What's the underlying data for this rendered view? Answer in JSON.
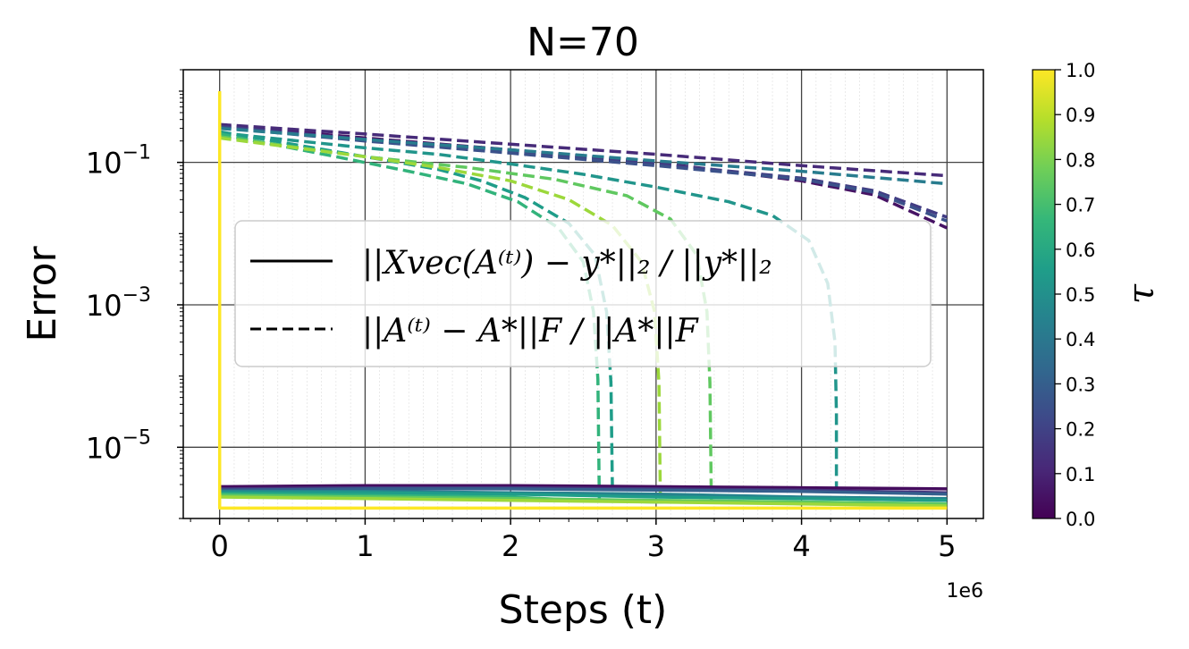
{
  "chart_data": {
    "type": "line",
    "title": "N=70",
    "xlabel": "Steps (t)",
    "ylabel": "Error",
    "x_offset_label": "1e6",
    "x_range": [
      -250000,
      5250000
    ],
    "y_scale": "log",
    "y_range": [
      1e-06,
      2
    ],
    "x_ticks": [
      {
        "value": 0,
        "label": "0"
      },
      {
        "value": 1000000,
        "label": "1"
      },
      {
        "value": 2000000,
        "label": "2"
      },
      {
        "value": 3000000,
        "label": "3"
      },
      {
        "value": 4000000,
        "label": "4"
      },
      {
        "value": 5000000,
        "label": "5"
      }
    ],
    "y_ticks": [
      {
        "value": 0.1,
        "base": "10",
        "exp": "−1"
      },
      {
        "value": 0.001,
        "base": "10",
        "exp": "−3"
      },
      {
        "value": 1e-05,
        "base": "10",
        "exp": "−5"
      }
    ],
    "grid": true,
    "colorbar": {
      "label": "τ",
      "min": 0.0,
      "max": 1.0,
      "ticks": [
        "0.0",
        "0.1",
        "0.2",
        "0.3",
        "0.4",
        "0.5",
        "0.6",
        "0.7",
        "0.8",
        "0.9",
        "1.0"
      ],
      "colormap": [
        "#440154",
        "#482878",
        "#3e4989",
        "#31688e",
        "#26828e",
        "#1f9e89",
        "#35b779",
        "#6ece58",
        "#b5de2b",
        "#fde725"
      ]
    },
    "legend": {
      "placement": "center-left",
      "entries": [
        {
          "style": "solid",
          "text": "||Xvec(A⁽ᵗ⁾) − y*||₂  /  ||y*||₂"
        },
        {
          "style": "dashed",
          "text": "||A⁽ᵗ⁾ − A*||F  /  ||A*||F"
        }
      ]
    },
    "series": [
      {
        "tau": 0.05,
        "style": "dashed",
        "x": [
          0,
          1000000,
          2000000,
          3000000,
          4000000,
          4500000,
          5000000
        ],
        "y": [
          0.33,
          0.22,
          0.15,
          0.1,
          0.055,
          0.035,
          0.012
        ]
      },
      {
        "tau": 0.12,
        "style": "dashed",
        "x": [
          0,
          1000000,
          2000000,
          3000000,
          4000000,
          5000000
        ],
        "y": [
          0.34,
          0.25,
          0.18,
          0.13,
          0.09,
          0.065
        ]
      },
      {
        "tau": 0.18,
        "style": "dashed",
        "x": [
          0,
          1000000,
          2000000,
          3000000,
          4000000,
          4500000,
          5000000
        ],
        "y": [
          0.32,
          0.21,
          0.14,
          0.095,
          0.06,
          0.04,
          0.017
        ]
      },
      {
        "tau": 0.25,
        "style": "dashed",
        "x": [
          0,
          1000000,
          2000000,
          3000000,
          4000000,
          4500000,
          5000000
        ],
        "y": [
          0.31,
          0.2,
          0.135,
          0.09,
          0.058,
          0.038,
          0.015
        ]
      },
      {
        "tau": 0.42,
        "style": "dashed",
        "x": [
          0,
          1000000,
          2000000,
          3000000,
          4000000,
          5000000
        ],
        "y": [
          0.3,
          0.21,
          0.15,
          0.105,
          0.075,
          0.05
        ]
      },
      {
        "tau": 0.52,
        "style": "dashed",
        "x": [
          0,
          1000000,
          1500000,
          2000000,
          2500000,
          3000000,
          3500000,
          3800000,
          4050000,
          4180000,
          4230000,
          4240000,
          4240000
        ],
        "y": [
          0.26,
          0.16,
          0.13,
          0.095,
          0.068,
          0.045,
          0.028,
          0.018,
          0.008,
          0.002,
          0.0003,
          3e-05,
          1.8e-06
        ]
      },
      {
        "tau": 0.55,
        "style": "dashed",
        "x": [
          0,
          1000000,
          1500000,
          1800000,
          2100000,
          2400000,
          2580000,
          2660000,
          2690000,
          2700000
        ],
        "y": [
          0.27,
          0.12,
          0.08,
          0.055,
          0.032,
          0.014,
          0.005,
          0.0008,
          8e-05,
          2.8e-06
        ]
      },
      {
        "tau": 0.65,
        "style": "dashed",
        "x": [
          0,
          800000,
          1300000,
          1700000,
          2050000,
          2330000,
          2500000,
          2570000,
          2600000,
          2610000
        ],
        "y": [
          0.25,
          0.12,
          0.075,
          0.05,
          0.028,
          0.012,
          0.004,
          0.0008,
          9e-05,
          1.8e-06
        ]
      },
      {
        "tau": 0.75,
        "style": "dashed",
        "x": [
          0,
          1000000,
          1700000,
          2300000,
          2800000,
          3100000,
          3280000,
          3350000,
          3370000,
          3380000
        ],
        "y": [
          0.23,
          0.12,
          0.085,
          0.058,
          0.034,
          0.016,
          0.005,
          0.0008,
          8e-05,
          1.8e-06
        ]
      },
      {
        "tau": 0.85,
        "style": "dashed",
        "x": [
          0,
          1000000,
          1500000,
          2000000,
          2400000,
          2700000,
          2900000,
          2990000,
          3020000,
          3030000
        ],
        "y": [
          0.22,
          0.12,
          0.085,
          0.055,
          0.03,
          0.013,
          0.004,
          0.0008,
          8e-05,
          1.8e-06
        ]
      },
      {
        "tau": 0.03,
        "style": "solid",
        "x": [
          0,
          1000000,
          2000000,
          3000000,
          4000000,
          5000000
        ],
        "y": [
          2.8e-06,
          2.9e-06,
          2.9e-06,
          2.8e-06,
          2.7e-06,
          2.6e-06
        ]
      },
      {
        "tau": 0.15,
        "style": "solid",
        "x": [
          0,
          1000000,
          2000000,
          3000000,
          4000000,
          5000000
        ],
        "y": [
          2.6e-06,
          2.7e-06,
          2.7e-06,
          2.6e-06,
          2.5e-06,
          2.3e-06
        ]
      },
      {
        "tau": 0.3,
        "style": "solid",
        "x": [
          0,
          1000000,
          2000000,
          3000000,
          4000000,
          5000000
        ],
        "y": [
          2.5e-06,
          2.6e-06,
          2.6e-06,
          2.5e-06,
          2.4e-06,
          2.2e-06
        ]
      },
      {
        "tau": 0.45,
        "style": "solid",
        "x": [
          0,
          1000000,
          2000000,
          3000000,
          4000000,
          5000000
        ],
        "y": [
          2.4e-06,
          2.4e-06,
          2.3e-06,
          2.2e-06,
          2e-06,
          1.9e-06
        ]
      },
      {
        "tau": 0.55,
        "style": "solid",
        "x": [
          0,
          1000000,
          2000000,
          3000000,
          4000000,
          5000000
        ],
        "y": [
          2.3e-06,
          2.3e-06,
          2.2e-06,
          2e-06,
          1.9e-06,
          1.8e-06
        ]
      },
      {
        "tau": 0.65,
        "style": "solid",
        "x": [
          0,
          1000000,
          2000000,
          2500000,
          3000000,
          4000000,
          5000000
        ],
        "y": [
          2.2e-06,
          2.1e-06,
          2e-06,
          1.8e-06,
          1.7e-06,
          1.7e-06,
          1.6e-06
        ]
      },
      {
        "tau": 0.75,
        "style": "solid",
        "x": [
          0,
          1000000,
          2000000,
          3000000,
          4000000,
          5000000
        ],
        "y": [
          2.1e-06,
          2e-06,
          1.9e-06,
          1.8e-06,
          1.7e-06,
          1.6e-06
        ]
      },
      {
        "tau": 0.85,
        "style": "solid",
        "x": [
          0,
          1000000,
          2000000,
          3000000,
          4000000,
          5000000
        ],
        "y": [
          2e-06,
          1.9e-06,
          1.8e-06,
          1.7e-06,
          1.6e-06,
          1.5e-06
        ]
      },
      {
        "tau": 1.0,
        "style": "solid",
        "x": [
          0,
          0,
          10000,
          1000000,
          3000000,
          5000000
        ],
        "y": [
          1.0,
          1.4e-06,
          1.4e-06,
          1.4e-06,
          1.4e-06,
          1.4e-06
        ]
      }
    ]
  }
}
